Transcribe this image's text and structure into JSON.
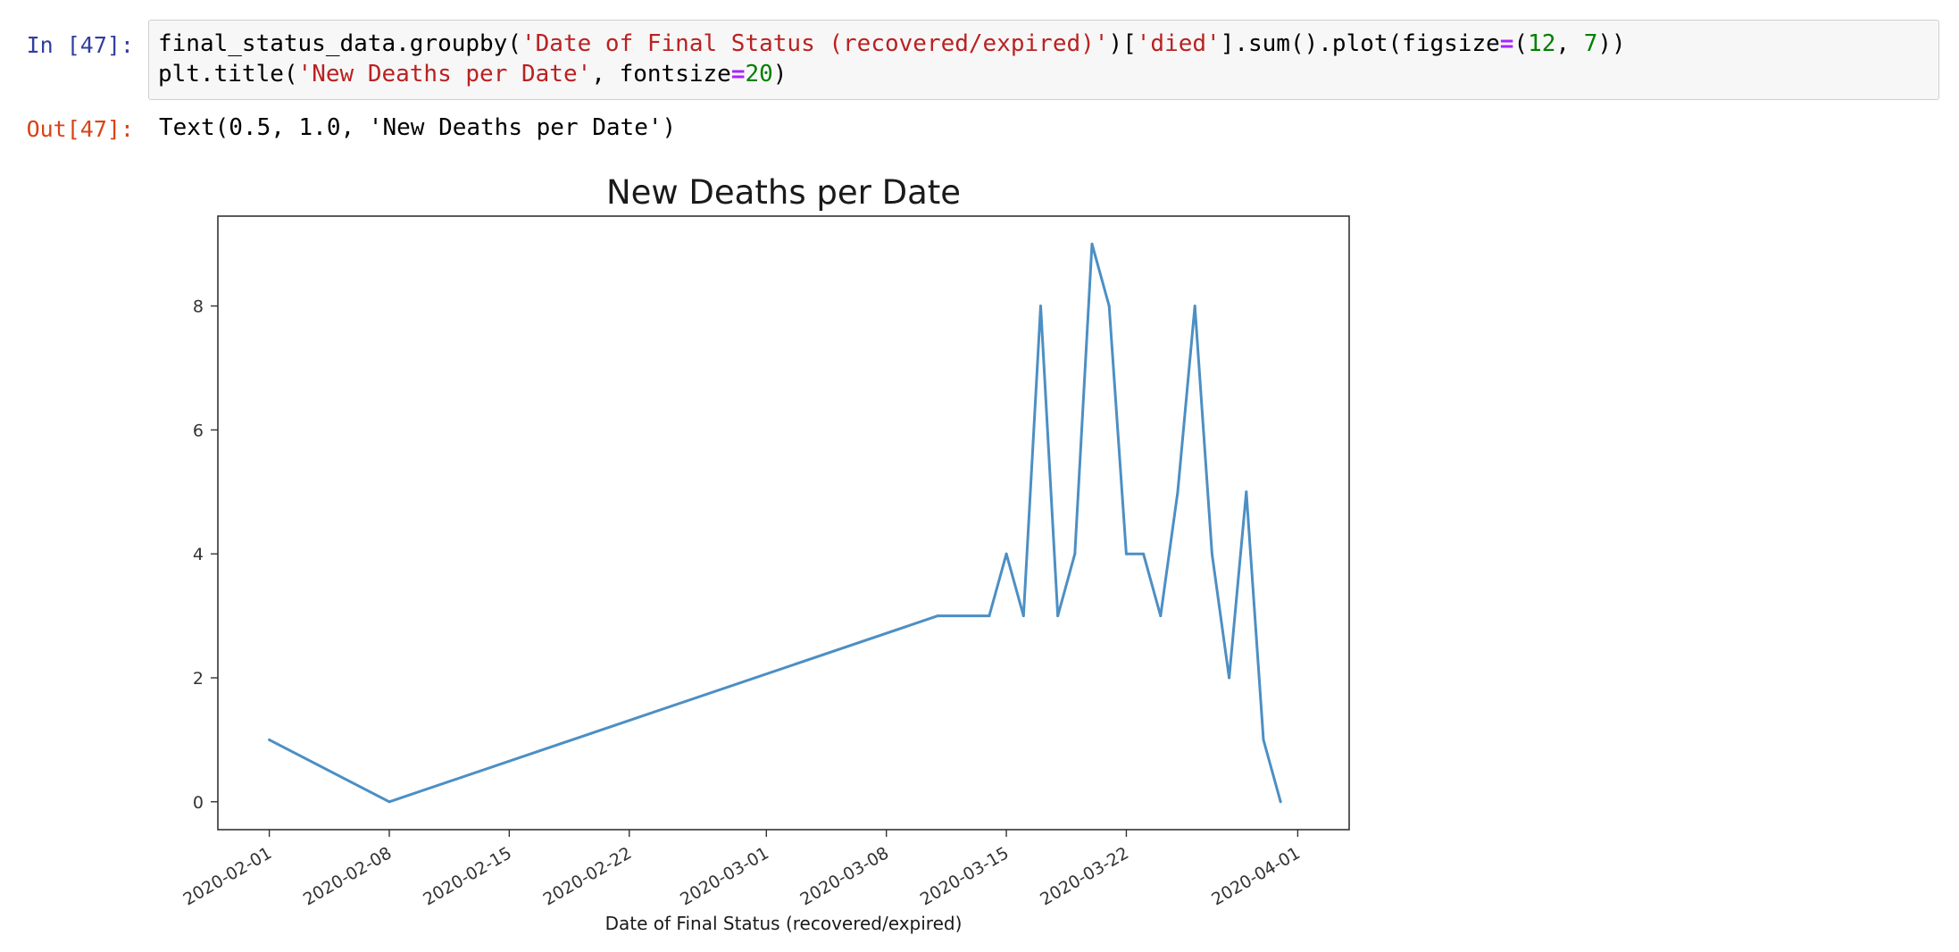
{
  "cells": {
    "in_prompt": "In [47]:",
    "out_prompt": "Out[47]:",
    "code": {
      "line1_a": "final_status_data.groupby(",
      "line1_str1": "'Date of Final Status (recovered/expired)'",
      "line1_b": ")[",
      "line1_str2": "'died'",
      "line1_c": "].sum().plot(figsize",
      "line1_eq": "=",
      "line1_d": "(",
      "line1_n1": "12",
      "line1_e": ", ",
      "line1_n2": "7",
      "line1_f": "))",
      "line2_a": "plt.title(",
      "line2_str": "'New Deaths per Date'",
      "line2_b": ", fontsize",
      "line2_eq": "=",
      "line2_n": "20",
      "line2_c": ")"
    },
    "output_text": "Text(0.5, 1.0, 'New Deaths per Date')"
  },
  "chart_data": {
    "type": "line",
    "title": "New Deaths per Date",
    "xlabel": "Date of Final Status (recovered/expired)",
    "ylabel": "",
    "x_ticks": [
      "2020-02-01",
      "2020-02-08",
      "2020-02-15",
      "2020-02-22",
      "2020-03-01",
      "2020-03-08",
      "2020-03-15",
      "2020-03-22",
      "2020-04-01"
    ],
    "y_ticks": [
      0,
      2,
      4,
      6,
      8
    ],
    "xlim": [
      "2020-01-29",
      "2020-04-04"
    ],
    "ylim": [
      -0.45,
      9.45
    ],
    "grid": false,
    "line_color": "#4c8fc4",
    "series": [
      {
        "x": [
          "2020-02-01",
          "2020-02-08",
          "2020-03-11",
          "2020-03-14",
          "2020-03-15",
          "2020-03-16",
          "2020-03-17",
          "2020-03-18",
          "2020-03-19",
          "2020-03-20",
          "2020-03-21",
          "2020-03-22",
          "2020-03-23",
          "2020-03-24",
          "2020-03-25",
          "2020-03-26",
          "2020-03-27",
          "2020-03-28",
          "2020-03-29",
          "2020-03-30",
          "2020-03-31"
        ],
        "values": [
          1,
          0,
          3,
          3,
          4,
          3,
          8,
          3,
          4,
          9,
          8,
          4,
          4,
          3,
          5,
          8,
          4,
          2,
          5,
          1,
          0
        ]
      }
    ]
  }
}
